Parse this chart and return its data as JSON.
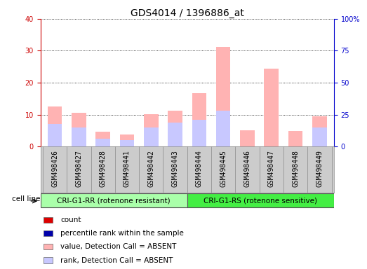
{
  "title": "GDS4014 / 1396886_at",
  "samples": [
    "GSM498426",
    "GSM498427",
    "GSM498428",
    "GSM498441",
    "GSM498442",
    "GSM498443",
    "GSM498444",
    "GSM498445",
    "GSM498446",
    "GSM498447",
    "GSM498448",
    "GSM498449"
  ],
  "group1_label": "CRI-G1-RR (rotenone resistant)",
  "group2_label": "CRI-G1-RS (rotenone sensitive)",
  "cell_line_label": "cell line",
  "n_group1": 6,
  "n_group2": 6,
  "value_absent": [
    12.5,
    10.5,
    4.7,
    3.8,
    10.2,
    11.3,
    16.8,
    31.2,
    5.0,
    24.3,
    4.9,
    9.6
  ],
  "rank_absent": [
    7.0,
    6.0,
    2.5,
    2.0,
    6.0,
    7.5,
    8.5,
    11.2,
    0.0,
    0.0,
    0.0,
    6.0
  ],
  "ylim_left": [
    0,
    40
  ],
  "ylim_right": [
    0,
    100
  ],
  "yticks_left": [
    0,
    10,
    20,
    30,
    40
  ],
  "yticks_right": [
    0,
    25,
    50,
    75,
    100
  ],
  "ytick_labels_right": [
    "0",
    "25",
    "50",
    "75",
    "100%"
  ],
  "color_value_absent": "#FFB3B3",
  "color_rank_absent": "#C8C8FF",
  "color_count": "#DD0000",
  "color_percentile": "#0000AA",
  "color_group1_bg": "#AAFFAA",
  "color_group2_bg": "#44EE44",
  "color_sample_bg": "#CCCCCC",
  "color_axis_left": "#CC0000",
  "color_axis_right": "#0000CC",
  "grid_color": "#000000",
  "title_fontsize": 10,
  "tick_fontsize": 7,
  "label_fontsize": 7.5,
  "legend_fontsize": 7.5,
  "bar_width": 0.6
}
